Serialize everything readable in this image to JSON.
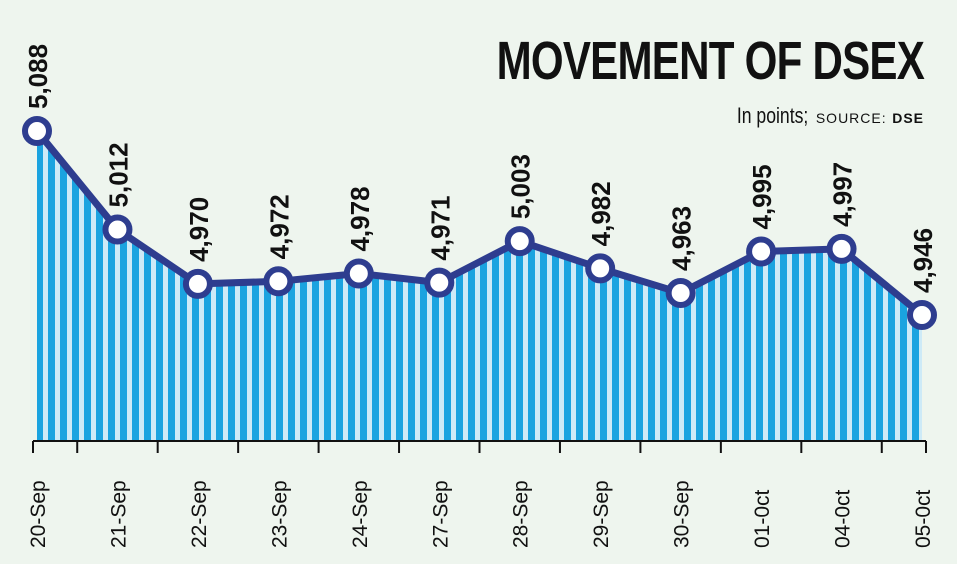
{
  "header": {
    "title": "MOVEMENT OF DSEX",
    "unit": "In points;",
    "source_label": "SOURCE:",
    "source": "DSE"
  },
  "colors": {
    "area_fill": "#1aa3e0",
    "stripe": "#cdeaf7",
    "line": "#2e3d8f",
    "marker_fill": "#ffffff",
    "background": "#eef5ee",
    "text": "#111111"
  },
  "chart_data": {
    "type": "area",
    "title": "MOVEMENT OF DSEX",
    "unit": "In points",
    "categories": [
      "20-Sep",
      "21-Sep",
      "22-Sep",
      "23-Sep",
      "24-Sep",
      "27-Sep",
      "28-Sep",
      "29-Sep",
      "30-Sep",
      "01-0ct",
      "04-0ct",
      "05-0ct"
    ],
    "value_labels": [
      "5,088",
      "5,012",
      "4,970",
      "4,972",
      "4,978",
      "4,971",
      "5,003",
      "4,982",
      "4,963",
      "4,995",
      "4,997",
      "4,946"
    ],
    "values": [
      5088,
      5012,
      4970,
      4972,
      4978,
      4971,
      5003,
      4982,
      4963,
      4995,
      4997,
      4946
    ],
    "grid": false,
    "legend": "none"
  }
}
